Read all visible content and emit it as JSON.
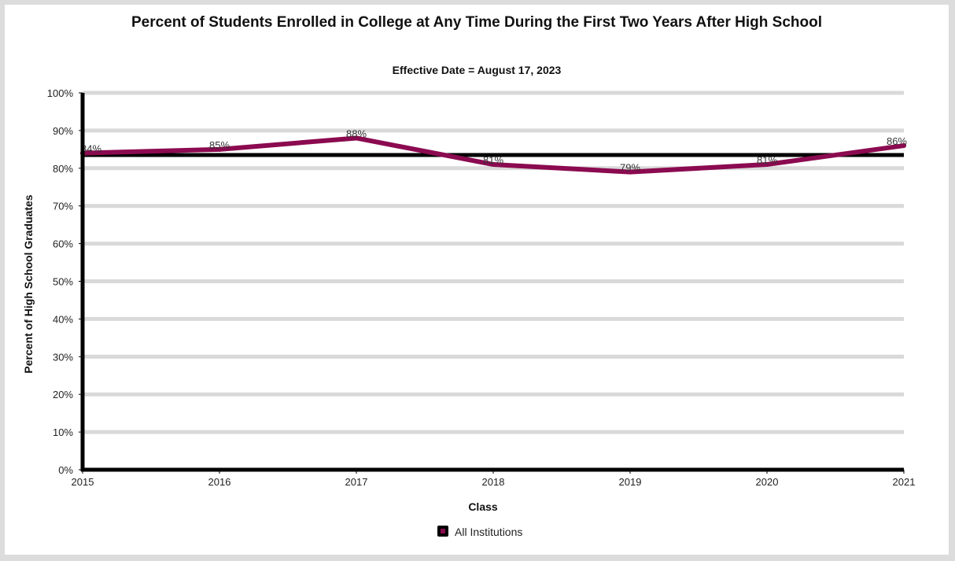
{
  "chart_data": {
    "type": "line",
    "title": "Percent of Students Enrolled in College at Any Time During the First Two Years After High School",
    "subtitle": "Effective Date = August 17, 2023",
    "xlabel": "Class",
    "ylabel": "Percent of High School Graduates",
    "categories": [
      "2015",
      "2016",
      "2017",
      "2018",
      "2019",
      "2020",
      "2021"
    ],
    "y_ticks": [
      "0%",
      "10%",
      "20%",
      "30%",
      "40%",
      "50%",
      "60%",
      "70%",
      "80%",
      "90%",
      "100%"
    ],
    "ylim": [
      0,
      100
    ],
    "grid": true,
    "legend_position": "bottom",
    "reference_line": 83.5,
    "series": [
      {
        "name": "All Institutions",
        "values": [
          84,
          85,
          88,
          81,
          79,
          81,
          86
        ],
        "labels": [
          "84%",
          "85%",
          "88%",
          "81%",
          "79%",
          "81%",
          "86%"
        ],
        "color": "#8b0a50"
      }
    ]
  }
}
